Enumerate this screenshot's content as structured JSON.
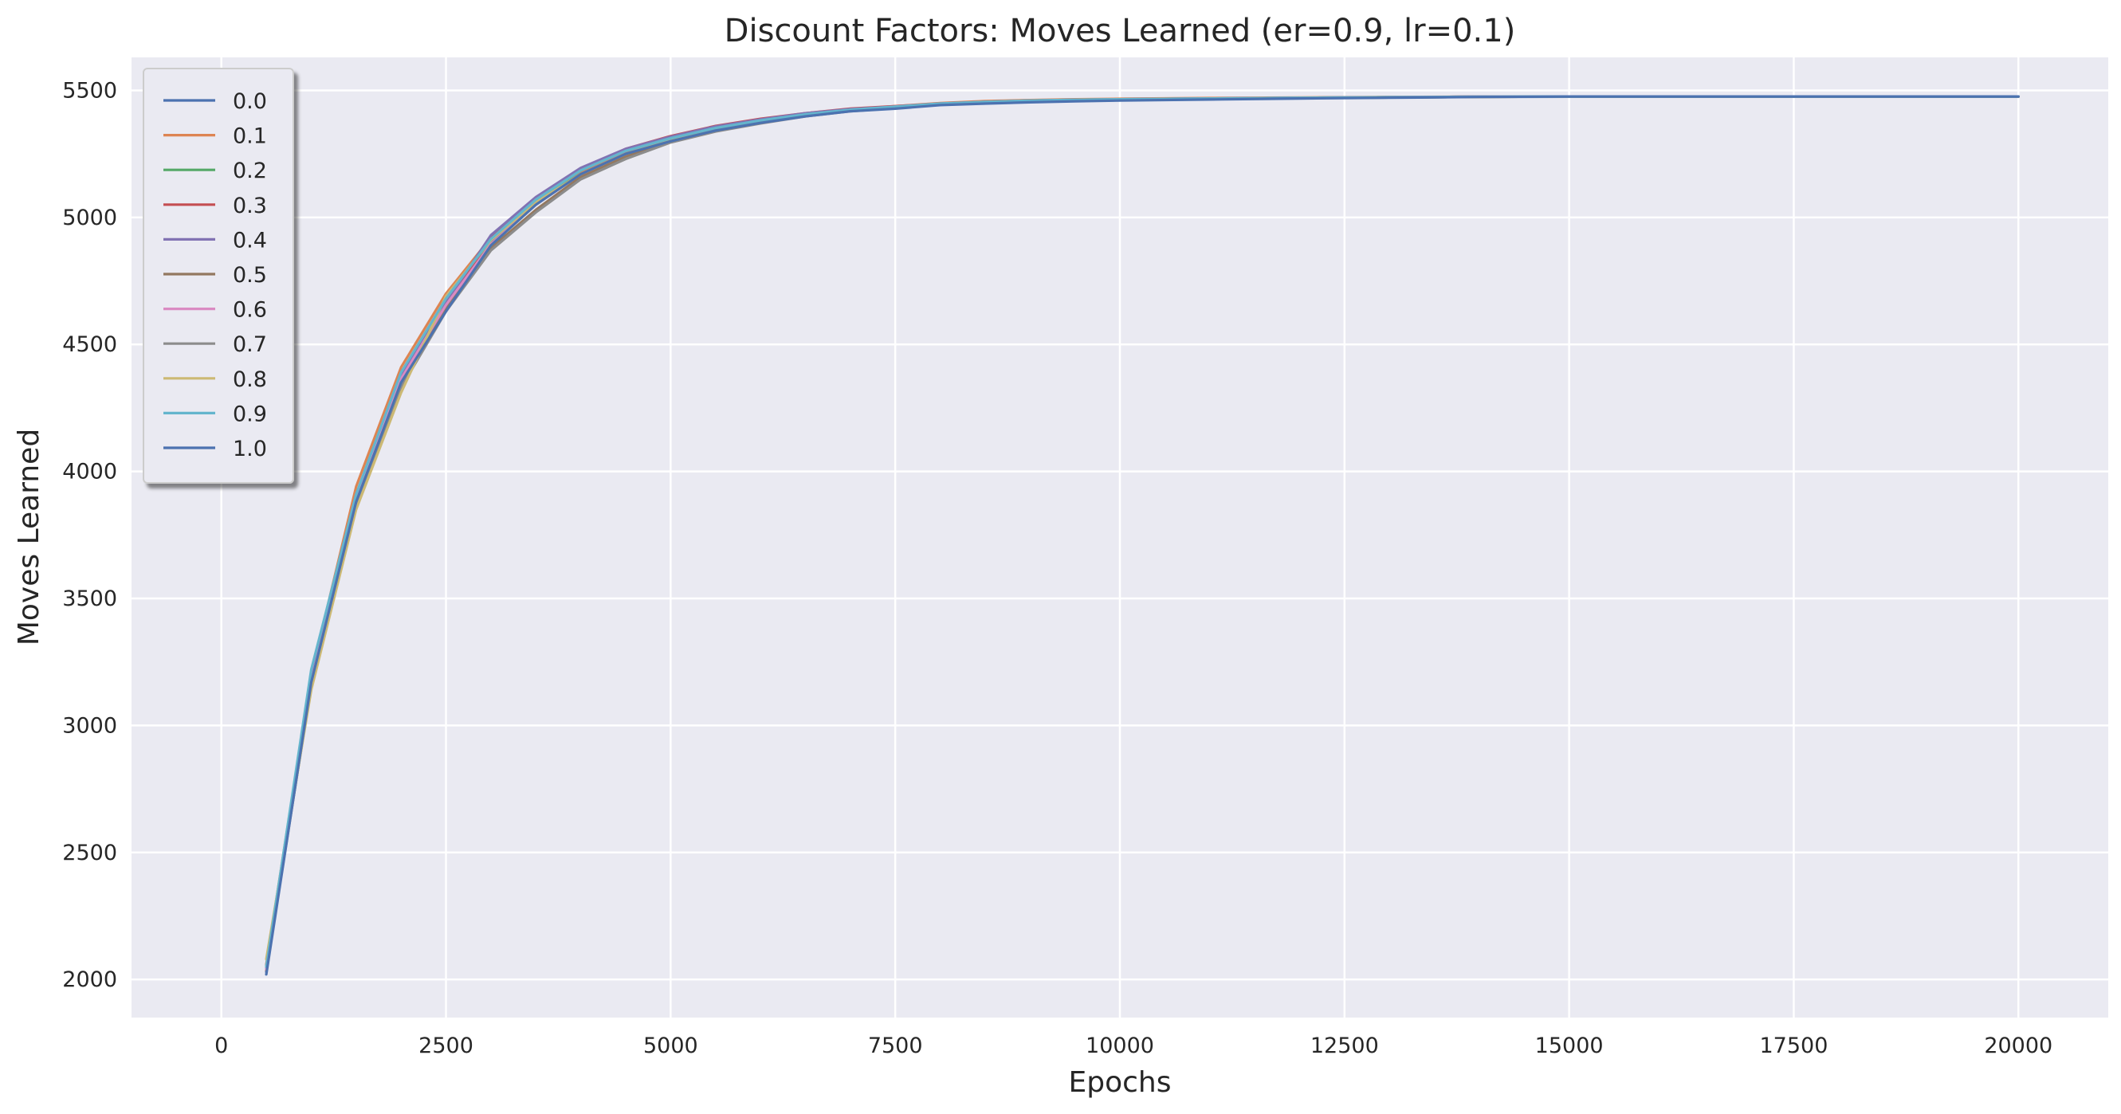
{
  "chart_data": {
    "type": "line",
    "title": "Discount Factors: Moves Learned (er=0.9, lr=0.1)",
    "xlabel": "Epochs",
    "ylabel": "Moves Learned",
    "xlim": [
      -1000,
      21000
    ],
    "ylim": [
      1850,
      5630
    ],
    "xticks": [
      0,
      2500,
      5000,
      7500,
      10000,
      12500,
      15000,
      17500,
      20000
    ],
    "yticks": [
      2000,
      2500,
      3000,
      3500,
      4000,
      4500,
      5000,
      5500
    ],
    "grid": true,
    "legend_position": "upper-left",
    "x": [
      500,
      1000,
      1500,
      2000,
      2500,
      3000,
      3500,
      4000,
      4500,
      5000,
      5500,
      6000,
      6500,
      7000,
      7500,
      8000,
      8500,
      9000,
      9500,
      10000,
      11000,
      12000,
      13000,
      14000,
      15000,
      16000,
      17000,
      18000,
      19000,
      20000
    ],
    "series": [
      {
        "name": "0.0",
        "color": "#4c72b0",
        "values": [
          2030,
          3180,
          3880,
          4360,
          4660,
          4900,
          5060,
          5180,
          5260,
          5310,
          5350,
          5380,
          5405,
          5420,
          5430,
          5445,
          5450,
          5455,
          5458,
          5462,
          5465,
          5470,
          5472,
          5474,
          5475,
          5476,
          5476,
          5476,
          5476,
          5476
        ]
      },
      {
        "name": "0.1",
        "color": "#dd8452",
        "values": [
          2060,
          3200,
          3940,
          4410,
          4700,
          4920,
          5070,
          5180,
          5260,
          5310,
          5350,
          5380,
          5405,
          5425,
          5438,
          5450,
          5458,
          5462,
          5465,
          5467,
          5470,
          5472,
          5474,
          5475,
          5476,
          5476,
          5476,
          5476,
          5476,
          5476
        ]
      },
      {
        "name": "0.2",
        "color": "#55a868",
        "values": [
          2050,
          3190,
          3900,
          4380,
          4670,
          4910,
          5065,
          5185,
          5265,
          5315,
          5355,
          5385,
          5408,
          5425,
          5435,
          5447,
          5455,
          5460,
          5463,
          5465,
          5468,
          5471,
          5473,
          5475,
          5476,
          5476,
          5476,
          5476,
          5476,
          5476
        ]
      },
      {
        "name": "0.3",
        "color": "#c44e52",
        "values": [
          2040,
          3170,
          3890,
          4370,
          4650,
          4920,
          5075,
          5190,
          5270,
          5320,
          5360,
          5388,
          5410,
          5428,
          5438,
          5448,
          5455,
          5460,
          5463,
          5465,
          5468,
          5471,
          5473,
          5475,
          5476,
          5476,
          5476,
          5476,
          5476,
          5476
        ]
      },
      {
        "name": "0.4",
        "color": "#8172b3",
        "values": [
          2045,
          3185,
          3895,
          4375,
          4665,
          4930,
          5080,
          5195,
          5270,
          5318,
          5358,
          5386,
          5410,
          5426,
          5436,
          5448,
          5455,
          5460,
          5463,
          5465,
          5468,
          5471,
          5473,
          5475,
          5476,
          5476,
          5476,
          5476,
          5476,
          5476
        ]
      },
      {
        "name": "0.5",
        "color": "#937860",
        "values": [
          2035,
          3160,
          3870,
          4340,
          4640,
          4880,
          5030,
          5160,
          5240,
          5300,
          5340,
          5372,
          5400,
          5420,
          5432,
          5445,
          5453,
          5458,
          5462,
          5464,
          5467,
          5470,
          5473,
          5475,
          5476,
          5476,
          5476,
          5476,
          5476,
          5476
        ]
      },
      {
        "name": "0.6",
        "color": "#da8bc3",
        "values": [
          2040,
          3175,
          3885,
          4365,
          4655,
          4895,
          5050,
          5170,
          5250,
          5305,
          5345,
          5376,
          5402,
          5422,
          5434,
          5446,
          5454,
          5459,
          5462,
          5464,
          5467,
          5470,
          5473,
          5475,
          5476,
          5476,
          5476,
          5476,
          5476,
          5476
        ]
      },
      {
        "name": "0.7",
        "color": "#8c8c8c",
        "values": [
          2055,
          3150,
          3860,
          4330,
          4630,
          4870,
          5020,
          5150,
          5230,
          5295,
          5338,
          5370,
          5398,
          5418,
          5430,
          5444,
          5452,
          5458,
          5461,
          5464,
          5467,
          5470,
          5472,
          5474,
          5476,
          5476,
          5476,
          5476,
          5476,
          5476
        ]
      },
      {
        "name": "0.8",
        "color": "#ccb974",
        "values": [
          2080,
          3140,
          3850,
          4310,
          4690,
          4910,
          5060,
          5170,
          5250,
          5305,
          5345,
          5376,
          5402,
          5420,
          5432,
          5445,
          5453,
          5458,
          5462,
          5464,
          5467,
          5470,
          5472,
          5474,
          5476,
          5476,
          5476,
          5476,
          5476,
          5476
        ]
      },
      {
        "name": "0.9",
        "color": "#64b5cd",
        "values": [
          2050,
          3220,
          3910,
          4390,
          4680,
          4915,
          5070,
          5185,
          5262,
          5312,
          5352,
          5382,
          5406,
          5424,
          5436,
          5448,
          5455,
          5460,
          5463,
          5465,
          5468,
          5471,
          5473,
          5475,
          5476,
          5476,
          5476,
          5476,
          5476,
          5476
        ]
      },
      {
        "name": "1.0",
        "color": "#4c72b0",
        "values": [
          2020,
          3170,
          3880,
          4350,
          4630,
          4890,
          5050,
          5170,
          5250,
          5300,
          5342,
          5372,
          5398,
          5418,
          5428,
          5442,
          5448,
          5453,
          5457,
          5460,
          5464,
          5468,
          5471,
          5474,
          5476,
          5476,
          5476,
          5476,
          5476,
          5476
        ]
      }
    ]
  }
}
